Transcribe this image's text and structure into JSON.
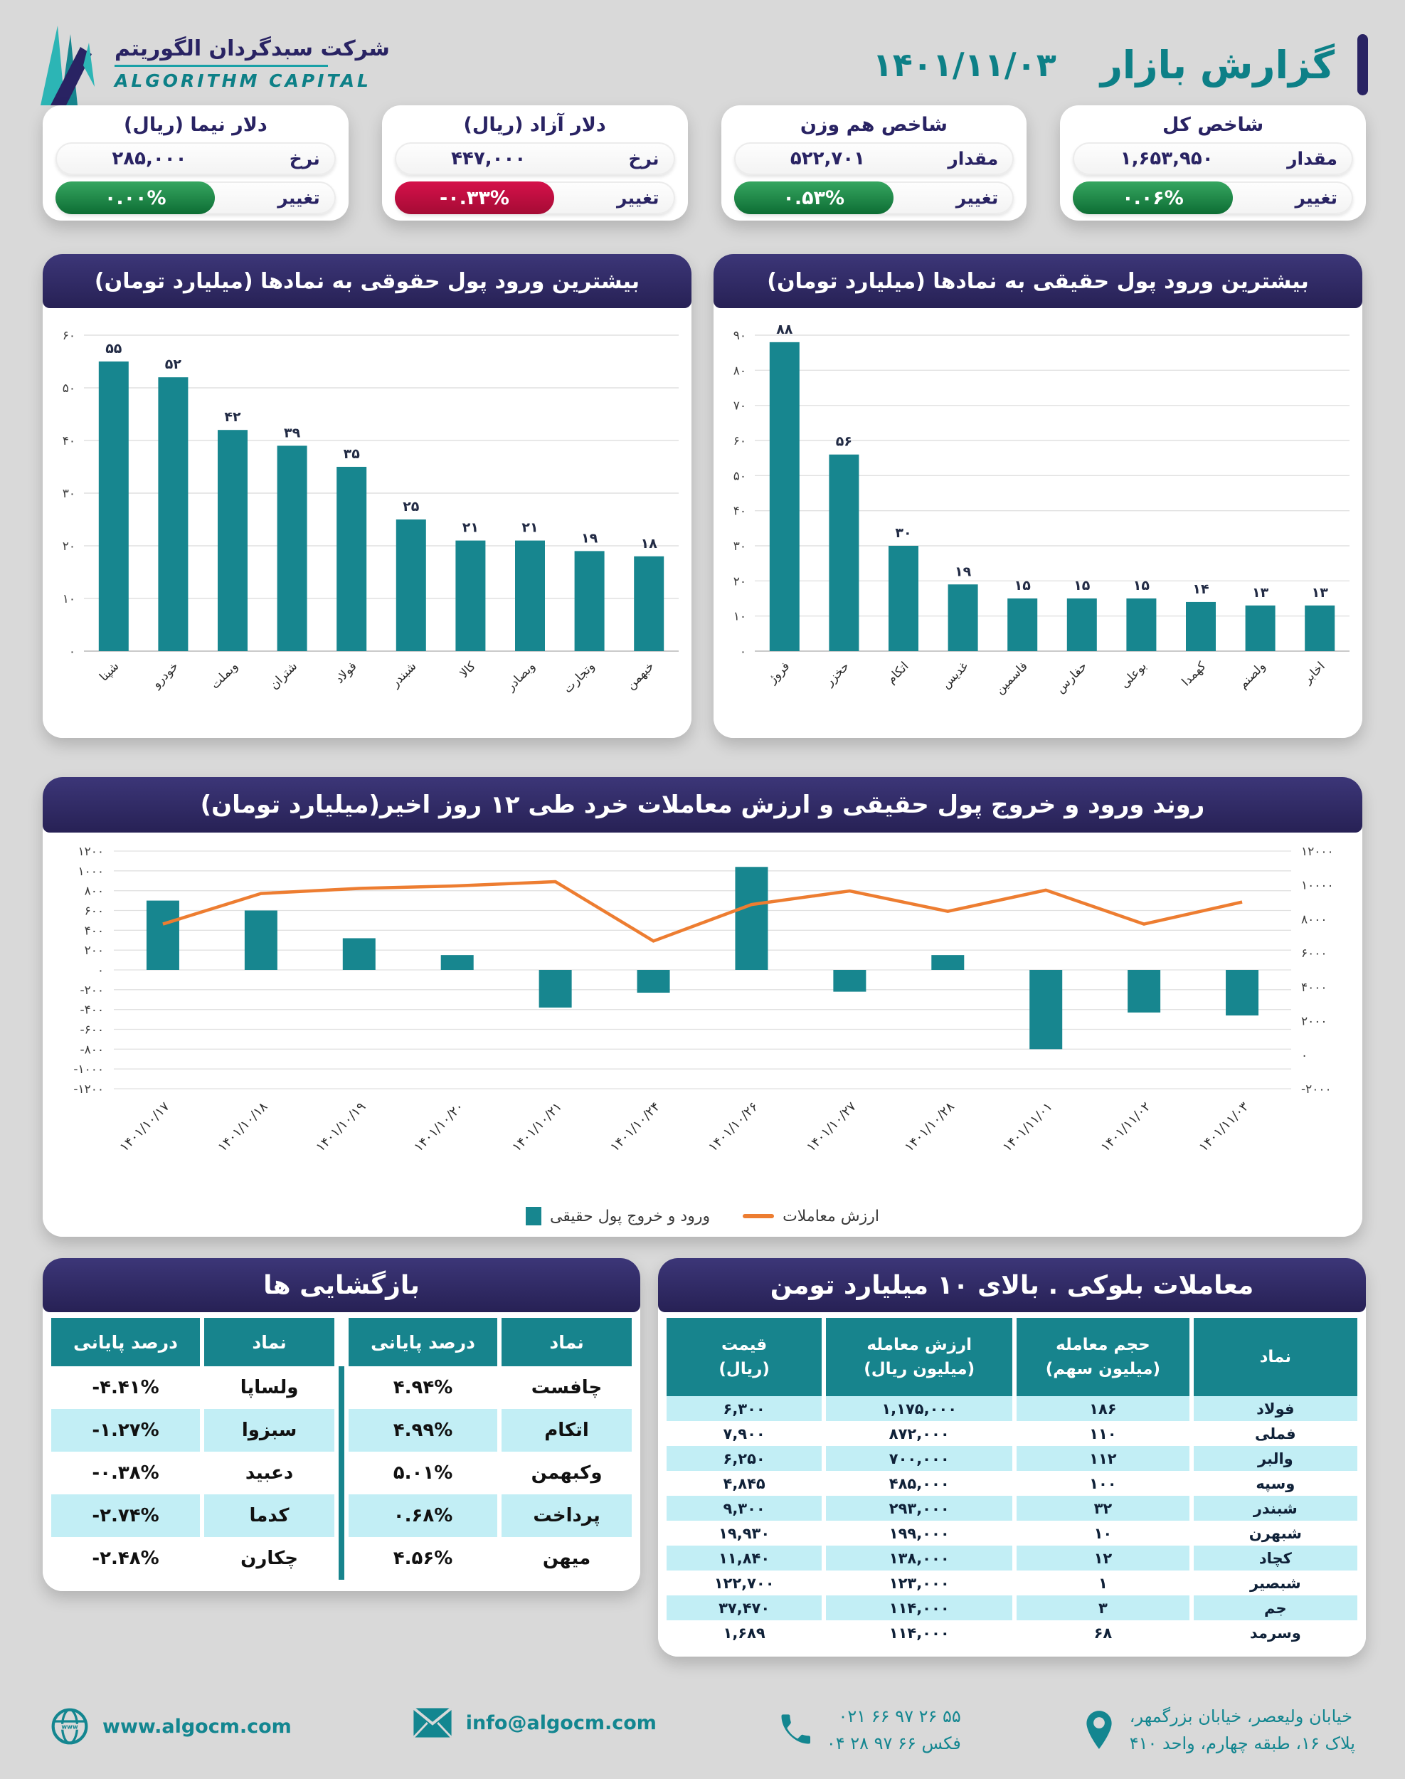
{
  "header": {
    "logo": {
      "company_fa": "شرکت سبدگردان الگوریتم",
      "company_en": "ALGORITHM CAPITAL",
      "mark": "algorithm-capital-logo"
    },
    "title": "گزارش بازار",
    "date": "۱۴۰۱/۱۱/۰۳"
  },
  "colors": {
    "teal": "#17868f",
    "navy": "#292363",
    "title_teal": "#0d8087",
    "green_badge": "#1e8446",
    "red_badge": "#c00d3d",
    "orange_line": "#ED7D31",
    "row_cyan": "#c2eef5",
    "pct_green": "#168a43",
    "pct_red": "#ee1526"
  },
  "stat_cards": [
    {
      "title": "شاخص کل",
      "value_label": "مقدار",
      "value": "۱,۶۵۳,۹۵۰",
      "change_label": "تغییر",
      "change": "۰.۰۶%",
      "direction": "up"
    },
    {
      "title": "شاخص هم وزن",
      "value_label": "مقدار",
      "value": "۵۲۲,۷۰۱",
      "change_label": "تغییر",
      "change": "۰.۵۳%",
      "direction": "up"
    },
    {
      "title": "دلار آزاد (ریال)",
      "value_label": "نرخ",
      "value": "۴۴۷,۰۰۰",
      "change_label": "تغییر",
      "change": "-۰.۳۳%",
      "direction": "down"
    },
    {
      "title": "دلار نیما (ریال)",
      "value_label": "نرخ",
      "value": "۲۸۵,۰۰۰",
      "change_label": "تغییر",
      "change": "۰.۰۰%",
      "direction": "up"
    }
  ],
  "chart_data": [
    {
      "id": "legal-inflow",
      "type": "bar",
      "title": "بیشترین ورود پول حقوقی به نمادها (میلیارد تومان)",
      "categories": [
        "شپنا",
        "خودرو",
        "وبملت",
        "شتران",
        "فولاد",
        "شبندر",
        "کالا",
        "وبصادر",
        "وتجارت",
        "خبهمن"
      ],
      "values": [
        55,
        52,
        42,
        39,
        35,
        25,
        21,
        21,
        19,
        18
      ],
      "ylim": [
        0,
        60
      ],
      "ytick_step": 10,
      "grid": true,
      "bar_color": "#17868f",
      "unit": "میلیارد تومان"
    },
    {
      "id": "real-inflow",
      "type": "bar",
      "title": "بیشترین ورود پول حقیقی به نمادها (میلیارد تومان)",
      "categories": [
        "فروژ",
        "حخزر",
        "اتکام",
        "غدیس",
        "فاسمین",
        "حفارس",
        "بوعلی",
        "کهمدا",
        "ولصنم",
        "اخابر"
      ],
      "values": [
        88,
        56,
        30,
        19,
        15,
        15,
        15,
        14,
        13,
        13
      ],
      "ylim": [
        0,
        90
      ],
      "ytick_step": 10,
      "grid": true,
      "bar_color": "#17868f",
      "unit": "میلیارد تومان"
    },
    {
      "id": "money-trend",
      "type": "bar+line",
      "title": "روند ورود و خروج پول حقیقی و ارزش معاملات خرد طی ۱۲ روز اخیر(میلیارد تومان)",
      "categories": [
        "۱۴۰۱/۱۰/۱۷",
        "۱۴۰۱/۱۰/۱۸",
        "۱۴۰۱/۱۰/۱۹",
        "۱۴۰۱/۱۰/۲۰",
        "۱۴۰۱/۱۰/۲۱",
        "۱۴۰۱/۱۰/۲۴",
        "۱۴۰۱/۱۰/۲۶",
        "۱۴۰۱/۱۰/۲۷",
        "۱۴۰۱/۱۰/۲۸",
        "۱۴۰۱/۱۱/۰۱",
        "۱۴۰۱/۱۱/۰۲",
        "۱۴۰۱/۱۱/۰۳"
      ],
      "series": [
        {
          "name": "ورود و خروج پول حقیقی",
          "type": "bar",
          "axis": "left",
          "color": "#17868f",
          "values": [
            700,
            600,
            320,
            150,
            -380,
            -230,
            1040,
            -220,
            150,
            -800,
            -430,
            -460
          ]
        },
        {
          "name": "ارزش معاملات",
          "type": "line",
          "axis": "right",
          "color": "#ED7D31",
          "values": [
            7700,
            9500,
            9800,
            9950,
            10200,
            6700,
            8850,
            9650,
            8450,
            9700,
            7700,
            9000
          ]
        }
      ],
      "left_ylim": [
        -1200,
        1200
      ],
      "left_tick_step": 200,
      "right_ylim": [
        -2000,
        12000
      ],
      "right_tick_step": 2000,
      "grid": true,
      "legend_position": "bottom"
    }
  ],
  "tables": {
    "reopenings": {
      "title": "بازگشایی ها",
      "headers": [
        "نماد",
        "درصد پایانی",
        "نماد",
        "درصد پایانی"
      ],
      "rows": [
        [
          "چافست",
          "۴.۹۴%",
          "ولساپا",
          "-۴.۴۱%"
        ],
        [
          "اتکام",
          "۴.۹۹%",
          "سبزوا",
          "-۱.۲۷%"
        ],
        [
          "وکبهمن",
          "۵.۰۱%",
          "دعبید",
          "-۰.۳۸%"
        ],
        [
          "پرداخت",
          "۰.۶۸%",
          "کدما",
          "-۲.۷۴%"
        ],
        [
          "میهن",
          "۴.۵۶%",
          "چکارن",
          "-۲.۴۸%"
        ]
      ]
    },
    "block_trades": {
      "title": "معاملات بلوکی . بالای ۱۰ میلیارد تومن",
      "headers": [
        {
          "line1": "نماد",
          "line2": ""
        },
        {
          "line1": "حجم معامله",
          "line2": "(میلیون سهم)"
        },
        {
          "line1": "ارزش معامله",
          "line2": "(میلیون ریال)"
        },
        {
          "line1": "قیمت",
          "line2": "(ریال)"
        }
      ],
      "rows": [
        [
          "فولاد",
          "۱۸۶",
          "۱,۱۷۵,۰۰۰",
          "۶,۳۰۰"
        ],
        [
          "فملی",
          "۱۱۰",
          "۸۷۲,۰۰۰",
          "۷,۹۰۰"
        ],
        [
          "والبر",
          "۱۱۲",
          "۷۰۰,۰۰۰",
          "۶,۲۵۰"
        ],
        [
          "وسپه",
          "۱۰۰",
          "۴۸۵,۰۰۰",
          "۴,۸۴۵"
        ],
        [
          "شبندر",
          "۳۲",
          "۲۹۳,۰۰۰",
          "۹,۳۰۰"
        ],
        [
          "شبهرن",
          "۱۰",
          "۱۹۹,۰۰۰",
          "۱۹,۹۳۰"
        ],
        [
          "کچاد",
          "۱۲",
          "۱۳۸,۰۰۰",
          "۱۱,۸۴۰"
        ],
        [
          "شبصیر",
          "۱",
          "۱۲۳,۰۰۰",
          "۱۲۲,۷۰۰"
        ],
        [
          "جم",
          "۳",
          "۱۱۴,۰۰۰",
          "۳۷,۴۷۰"
        ],
        [
          "وسرمد",
          "۶۸",
          "۱۱۴,۰۰۰",
          "۱,۶۸۹"
        ]
      ]
    }
  },
  "footer": {
    "items": [
      "globe-icon",
      "mail-icon",
      "phone-icon",
      "location-pin-icon"
    ],
    "website": "www.algocm.com",
    "email": "info@algocm.com",
    "phone": "۰۲۱ ۶۶ ۹۷ ۲۶ ۵۵",
    "fax": "۰۴ ۲۸ ۹۷ ۶۶ فکس",
    "address_line1": "خیابان ولیعصر، خیابان بزرگمهر،",
    "address_line2": "پلاک ۱۶، طبقه چهارم، واحد ۴۱۰"
  }
}
